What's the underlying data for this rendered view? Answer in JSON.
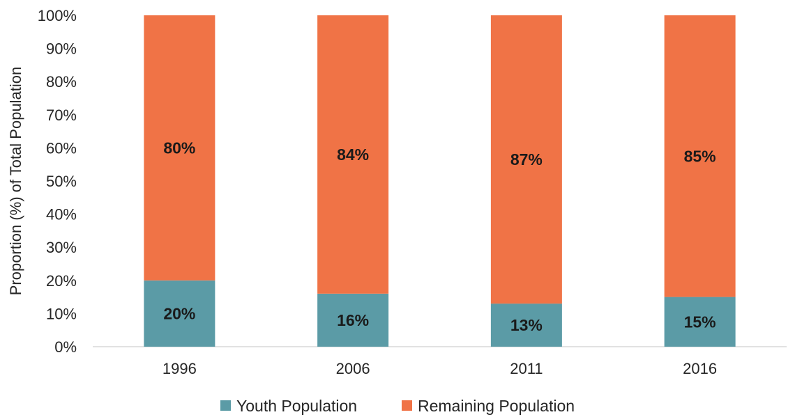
{
  "chart_data": {
    "type": "bar",
    "stacked": true,
    "categories": [
      "1996",
      "2006",
      "2011",
      "2016"
    ],
    "series": [
      {
        "name": "Youth Population",
        "values": [
          20,
          16,
          13,
          15
        ],
        "labels": [
          "20%",
          "16%",
          "13%",
          "15%"
        ],
        "color": "#5B9BA6"
      },
      {
        "name": "Remaining Population",
        "values": [
          80,
          84,
          87,
          85
        ],
        "labels": [
          "80%",
          "84%",
          "87%",
          "85%"
        ],
        "color": "#F07346"
      }
    ],
    "title": "",
    "xlabel": "",
    "ylabel": "Proportion (%) of Total Population",
    "ylim": [
      0,
      100
    ],
    "yticks": [
      "0%",
      "10%",
      "20%",
      "30%",
      "40%",
      "50%",
      "60%",
      "70%",
      "80%",
      "90%",
      "100%"
    ],
    "grid": false,
    "legend_position": "bottom"
  }
}
